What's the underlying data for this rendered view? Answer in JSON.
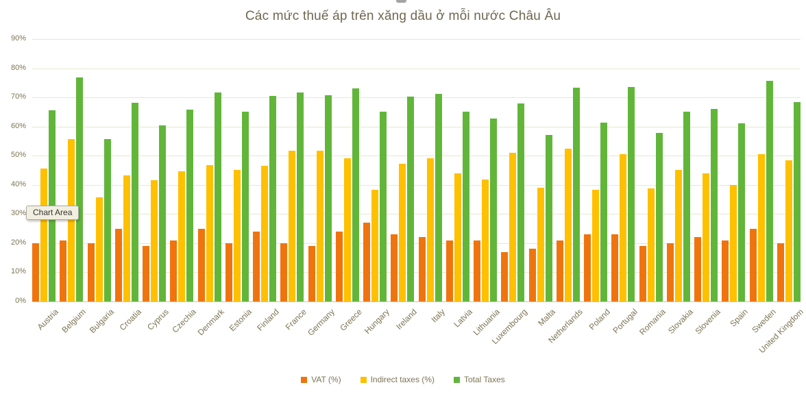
{
  "chart_data": {
    "type": "bar",
    "title": "Các mức thuế áp trên xăng dầu ở mỗi nước Châu Âu",
    "categories": [
      "Austria",
      "Belgium",
      "Bulgaria",
      "Croatia",
      "Cyprus",
      "Czechia",
      "Denmark",
      "Estonia",
      "Finland",
      "France",
      "Germany",
      "Greece",
      "Hungary",
      "Ireland",
      "Italy",
      "Latvia",
      "Lithuania",
      "Luxembourg",
      "Malta",
      "Netherlands",
      "Poland",
      "Portugal",
      "Romania",
      "Slovakia",
      "Slovenia",
      "Spain",
      "Sweden",
      "United Kingdom"
    ],
    "series": [
      {
        "name": "VAT (%)",
        "color": "#F0740E",
        "values": [
          20,
          21,
          20,
          25,
          19,
          21,
          25,
          20,
          24,
          20,
          19,
          24,
          27,
          23,
          22,
          21,
          21,
          17,
          18,
          21,
          23,
          23,
          19,
          20,
          22,
          21,
          25,
          20
        ]
      },
      {
        "name": "Indirect taxes (%)",
        "color": "#FFC000",
        "values": [
          45.5,
          55.8,
          35.8,
          43.2,
          41.5,
          44.7,
          46.7,
          45.2,
          46.6,
          51.7,
          51.7,
          49,
          38.2,
          47.3,
          49.2,
          44,
          41.8,
          51,
          39,
          52.3,
          38.4,
          50.6,
          38.8,
          45.2,
          44,
          40,
          50.6,
          48.3
        ]
      },
      {
        "name": "Total Taxes",
        "color": "#61B63A",
        "values": [
          65.5,
          76.8,
          55.8,
          68.2,
          60.5,
          65.7,
          71.7,
          65.2,
          70.6,
          71.7,
          70.7,
          73,
          65.2,
          70.3,
          71.2,
          65,
          62.8,
          68,
          57,
          73.3,
          61.4,
          73.6,
          57.8,
          65.2,
          66,
          61,
          75.6,
          68.3
        ]
      }
    ],
    "ylim": [
      0,
      90
    ],
    "ytick_step": 10,
    "ytick_labels": [
      "0%",
      "10%",
      "20%",
      "30%",
      "40%",
      "50%",
      "60%",
      "70%",
      "80%",
      "90%"
    ],
    "grid": true,
    "legend_position": "bottom"
  },
  "tooltip": {
    "label": "Chart Area"
  }
}
